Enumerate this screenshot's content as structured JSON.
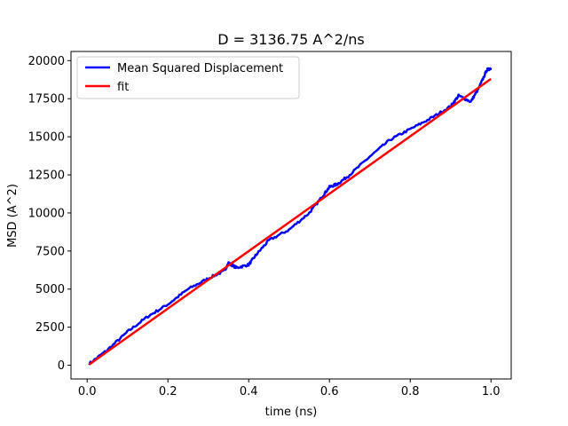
{
  "chart_data": {
    "type": "line",
    "title": "D = 3136.75 A^2/ns",
    "xlabel": "time (ns)",
    "ylabel": "MSD (A^2)",
    "xlim": [
      -0.04,
      1.05
    ],
    "ylim": [
      -900,
      20600
    ],
    "xticks": [
      {
        "value": 0.0,
        "label": "0.0"
      },
      {
        "value": 0.2,
        "label": "0.2"
      },
      {
        "value": 0.4,
        "label": "0.4"
      },
      {
        "value": 0.6,
        "label": "0.6"
      },
      {
        "value": 0.8,
        "label": "0.8"
      },
      {
        "value": 1.0,
        "label": "1.0"
      }
    ],
    "yticks": [
      {
        "value": 0,
        "label": "0"
      },
      {
        "value": 2500,
        "label": "2500"
      },
      {
        "value": 5000,
        "label": "5000"
      },
      {
        "value": 7500,
        "label": "7500"
      },
      {
        "value": 10000,
        "label": "10000"
      },
      {
        "value": 12500,
        "label": "12500"
      },
      {
        "value": 15000,
        "label": "15000"
      },
      {
        "value": 17500,
        "label": "17500"
      },
      {
        "value": 20000,
        "label": "20000"
      }
    ],
    "legend_position": "top-left",
    "grid": false,
    "series": [
      {
        "name": "Mean Squared Displacement",
        "color": "#0000ff",
        "x": [
          0.005,
          0.05,
          0.1,
          0.15,
          0.2,
          0.25,
          0.3,
          0.34,
          0.35,
          0.37,
          0.4,
          0.42,
          0.45,
          0.5,
          0.55,
          0.58,
          0.6,
          0.62,
          0.65,
          0.7,
          0.75,
          0.8,
          0.85,
          0.9,
          0.92,
          0.95,
          0.97,
          0.99,
          1.0
        ],
        "y": [
          100,
          1000,
          2200,
          3200,
          4000,
          5000,
          5700,
          6200,
          6700,
          6400,
          6600,
          7300,
          8200,
          8900,
          10000,
          11000,
          11700,
          11900,
          12500,
          13700,
          14800,
          15500,
          16200,
          17000,
          17700,
          17300,
          18200,
          19400,
          19500
        ]
      },
      {
        "name": "fit",
        "color": "#ff0000",
        "x": [
          0.005,
          1.0
        ],
        "y": [
          50,
          18800
        ]
      }
    ]
  }
}
